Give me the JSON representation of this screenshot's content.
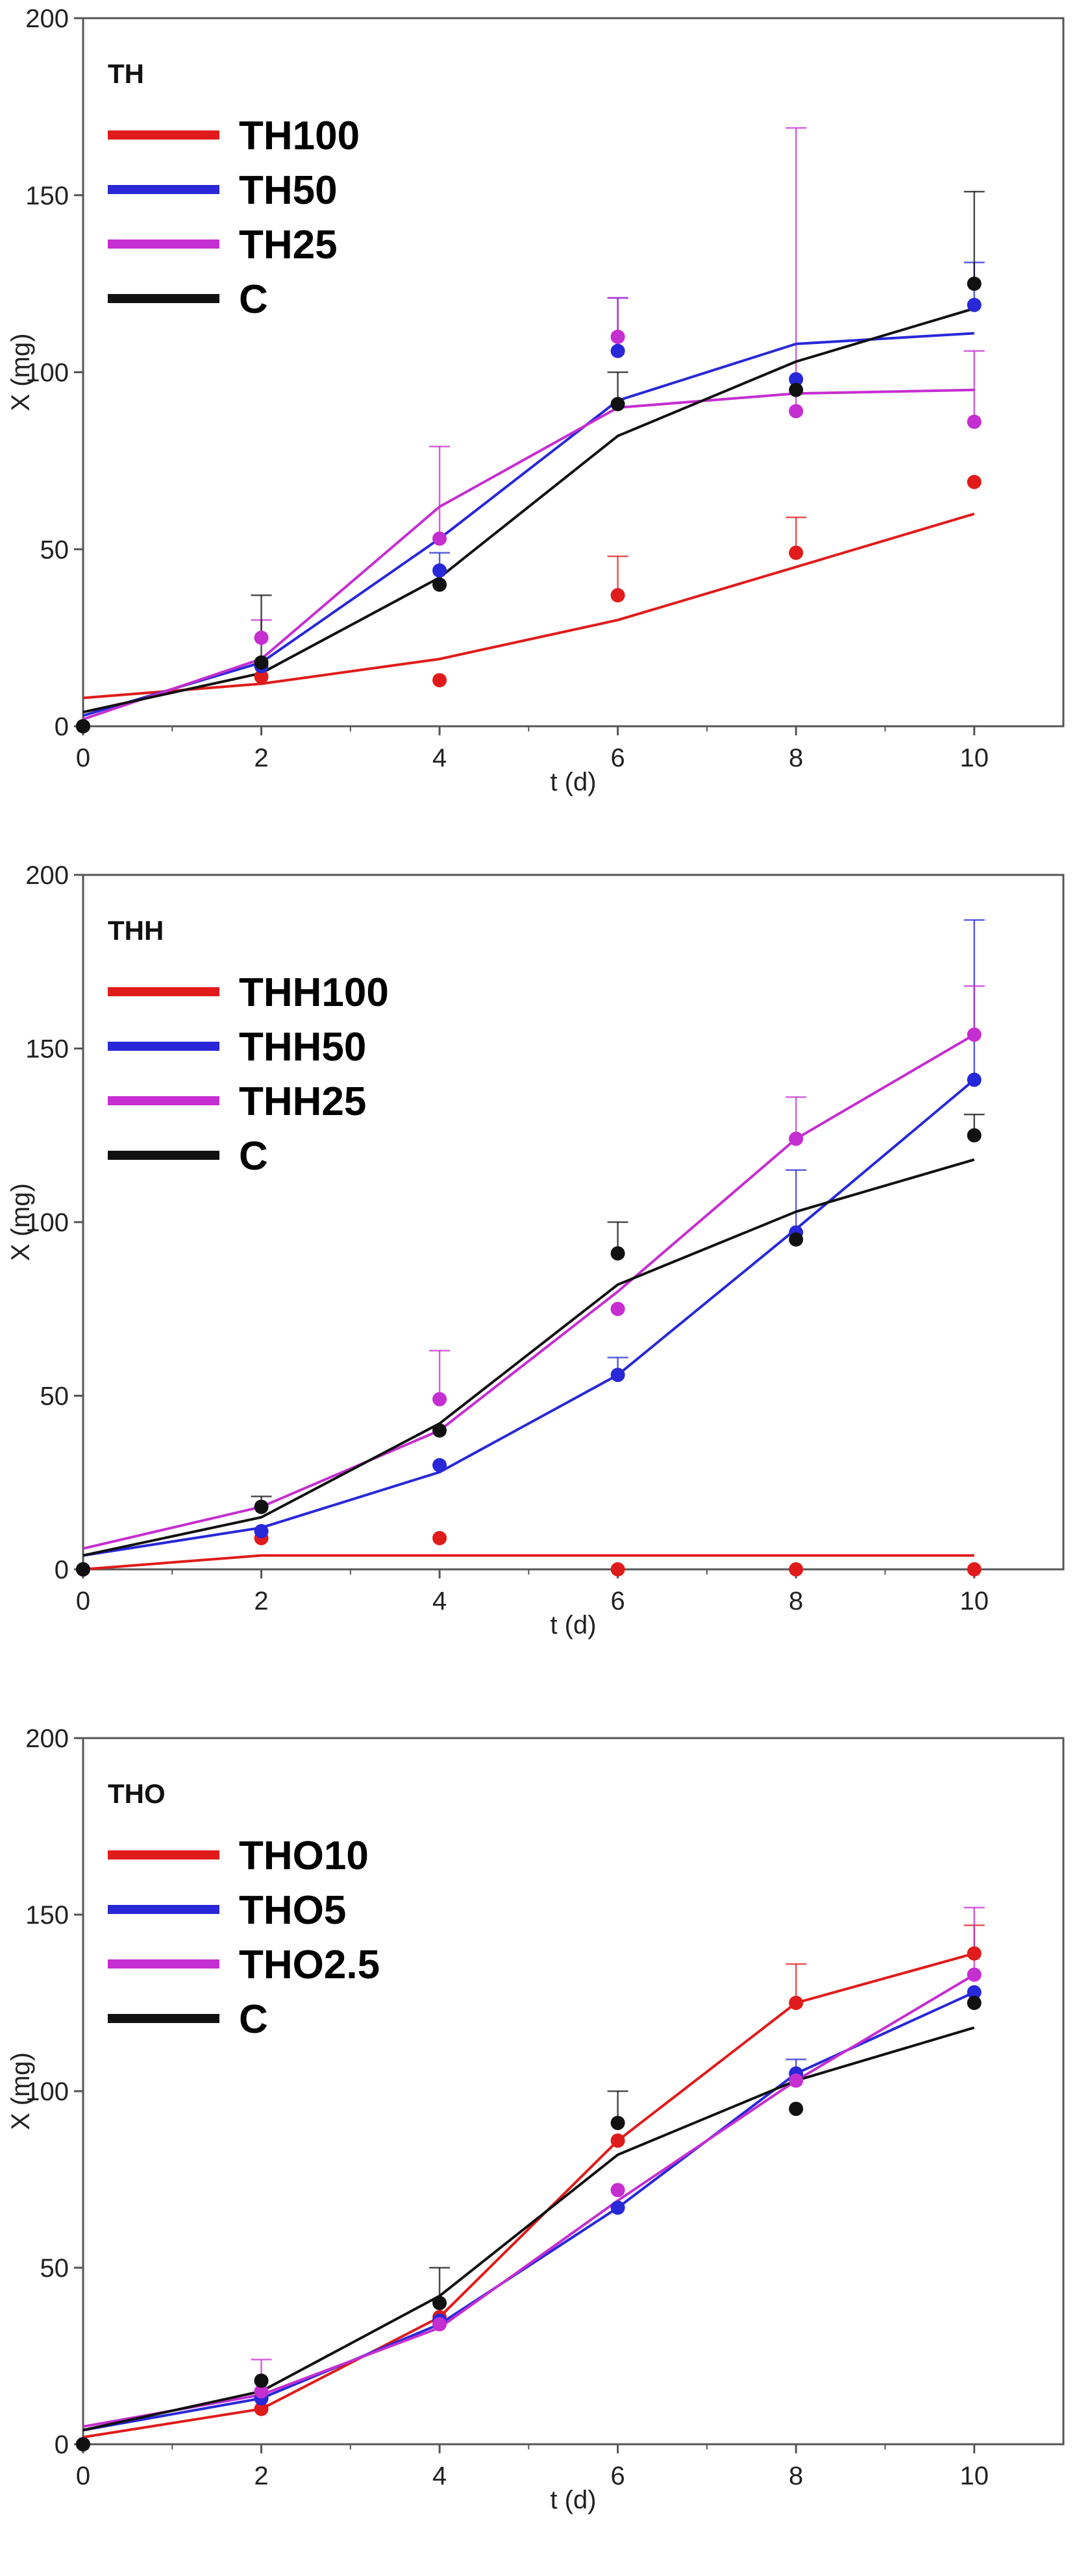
{
  "chart_data": [
    {
      "type": "line",
      "title": "TH",
      "xlabel": "t (d)",
      "ylabel": "X (mg)",
      "xlim": [
        0,
        11
      ],
      "ylim": [
        0,
        200
      ],
      "xticks": [
        0,
        2,
        4,
        6,
        8,
        10
      ],
      "yticks": [
        0,
        50,
        100,
        150,
        200
      ],
      "grid": false,
      "legend_position": "top-left",
      "series": [
        {
          "name": "TH100",
          "color": "#e01b1b",
          "fit_x": [
            0,
            2,
            4,
            6,
            8,
            10
          ],
          "fit_y": [
            8,
            12,
            19,
            30,
            45,
            60
          ],
          "points_x": [
            0,
            2,
            4,
            6,
            8,
            10
          ],
          "points_y": [
            0,
            14,
            13,
            37,
            49,
            69
          ],
          "err_upper": [
            0,
            0,
            0,
            48,
            59,
            0
          ]
        },
        {
          "name": "TH50",
          "color": "#2828d8",
          "fit_x": [
            0,
            2,
            4,
            6,
            8,
            10
          ],
          "fit_y": [
            3,
            18,
            53,
            92,
            108,
            111
          ],
          "points_x": [
            0,
            2,
            4,
            6,
            8,
            10
          ],
          "points_y": [
            0,
            17,
            44,
            106,
            98,
            119
          ],
          "err_upper": [
            0,
            0,
            49,
            121,
            0,
            131
          ]
        },
        {
          "name": "TH25",
          "color": "#c52ed0",
          "fit_x": [
            0,
            2,
            4,
            6,
            8,
            10
          ],
          "fit_y": [
            2,
            19,
            62,
            90,
            94,
            95
          ],
          "points_x": [
            0,
            2,
            4,
            6,
            8,
            10
          ],
          "points_y": [
            0,
            25,
            53,
            110,
            89,
            86
          ],
          "err_upper": [
            0,
            30,
            79,
            121,
            169,
            106
          ]
        },
        {
          "name": "C",
          "color": "#111111",
          "fit_x": [
            0,
            2,
            4,
            6,
            8,
            10
          ],
          "fit_y": [
            4,
            15,
            42,
            82,
            103,
            118
          ],
          "points_x": [
            0,
            2,
            4,
            6,
            8,
            10
          ],
          "points_y": [
            0,
            18,
            40,
            91,
            95,
            125
          ],
          "err_upper": [
            0,
            37,
            0,
            100,
            0,
            151
          ]
        }
      ]
    },
    {
      "type": "line",
      "title": "THH",
      "xlabel": "t (d)",
      "ylabel": "X (mg)",
      "xlim": [
        0,
        11
      ],
      "ylim": [
        0,
        200
      ],
      "xticks": [
        0,
        2,
        4,
        6,
        8,
        10
      ],
      "yticks": [
        0,
        50,
        100,
        150,
        200
      ],
      "grid": false,
      "legend_position": "top-left",
      "series": [
        {
          "name": "THH100",
          "color": "#e01b1b",
          "fit_x": [
            0,
            2,
            4,
            6,
            8,
            10
          ],
          "fit_y": [
            0,
            4,
            4,
            4,
            4,
            4
          ],
          "points_x": [
            0,
            2,
            4,
            6,
            8,
            10
          ],
          "points_y": [
            0,
            9,
            9,
            0,
            0,
            0
          ],
          "err_upper": [
            0,
            0,
            0,
            0,
            0,
            0
          ]
        },
        {
          "name": "THH50",
          "color": "#2828d8",
          "fit_x": [
            0,
            2,
            4,
            6,
            8,
            10
          ],
          "fit_y": [
            4,
            12,
            28,
            56,
            98,
            141
          ],
          "points_x": [
            0,
            2,
            4,
            6,
            8,
            10
          ],
          "points_y": [
            0,
            11,
            30,
            56,
            97,
            141
          ],
          "err_upper": [
            0,
            0,
            0,
            61,
            115,
            187
          ]
        },
        {
          "name": "THH25",
          "color": "#c52ed0",
          "fit_x": [
            0,
            2,
            4,
            6,
            8,
            10
          ],
          "fit_y": [
            6,
            18,
            40,
            80,
            124,
            154
          ],
          "points_x": [
            0,
            2,
            4,
            6,
            8,
            10
          ],
          "points_y": [
            0,
            18,
            49,
            75,
            124,
            154
          ],
          "err_upper": [
            0,
            0,
            63,
            0,
            136,
            168
          ]
        },
        {
          "name": "C",
          "color": "#111111",
          "fit_x": [
            0,
            2,
            4,
            6,
            8,
            10
          ],
          "fit_y": [
            4,
            15,
            42,
            82,
            103,
            118
          ],
          "points_x": [
            0,
            2,
            4,
            6,
            8,
            10
          ],
          "points_y": [
            0,
            18,
            40,
            91,
            95,
            125
          ],
          "err_upper": [
            0,
            21,
            0,
            100,
            0,
            131
          ]
        }
      ]
    },
    {
      "type": "line",
      "title": "THO",
      "xlabel": "t (d)",
      "ylabel": "X (mg)",
      "xlim": [
        0,
        11
      ],
      "ylim": [
        0,
        200
      ],
      "xticks": [
        0,
        2,
        4,
        6,
        8,
        10
      ],
      "yticks": [
        0,
        50,
        100,
        150,
        200
      ],
      "grid": false,
      "legend_position": "top-left",
      "series": [
        {
          "name": "THO10",
          "color": "#e01b1b",
          "fit_x": [
            0,
            2,
            4,
            6,
            8,
            10
          ],
          "fit_y": [
            2,
            10,
            36,
            86,
            125,
            139
          ],
          "points_x": [
            0,
            2,
            4,
            6,
            8,
            10
          ],
          "points_y": [
            0,
            10,
            36,
            86,
            125,
            139
          ],
          "err_upper": [
            0,
            0,
            0,
            0,
            136,
            147
          ]
        },
        {
          "name": "THO5",
          "color": "#2828d8",
          "fit_x": [
            0,
            2,
            4,
            6,
            8,
            10
          ],
          "fit_y": [
            4,
            13,
            34,
            67,
            105,
            128
          ],
          "points_x": [
            0,
            2,
            4,
            6,
            8,
            10
          ],
          "points_y": [
            0,
            13,
            35,
            67,
            105,
            128
          ],
          "err_upper": [
            0,
            0,
            0,
            0,
            109,
            0
          ]
        },
        {
          "name": "THO2.5",
          "color": "#c52ed0",
          "fit_x": [
            0,
            2,
            4,
            6,
            8,
            10
          ],
          "fit_y": [
            5,
            14,
            33,
            69,
            103,
            133
          ],
          "points_x": [
            0,
            2,
            4,
            6,
            8,
            10
          ],
          "points_y": [
            0,
            15,
            34,
            72,
            103,
            133
          ],
          "err_upper": [
            0,
            24,
            0,
            0,
            0,
            152
          ]
        },
        {
          "name": "C",
          "color": "#111111",
          "fit_x": [
            0,
            2,
            4,
            6,
            8,
            10
          ],
          "fit_y": [
            4,
            15,
            42,
            82,
            103,
            118
          ],
          "points_x": [
            0,
            2,
            4,
            6,
            8,
            10
          ],
          "points_y": [
            0,
            18,
            40,
            91,
            95,
            125
          ],
          "err_upper": [
            0,
            0,
            50,
            100,
            0,
            0
          ]
        }
      ]
    }
  ]
}
